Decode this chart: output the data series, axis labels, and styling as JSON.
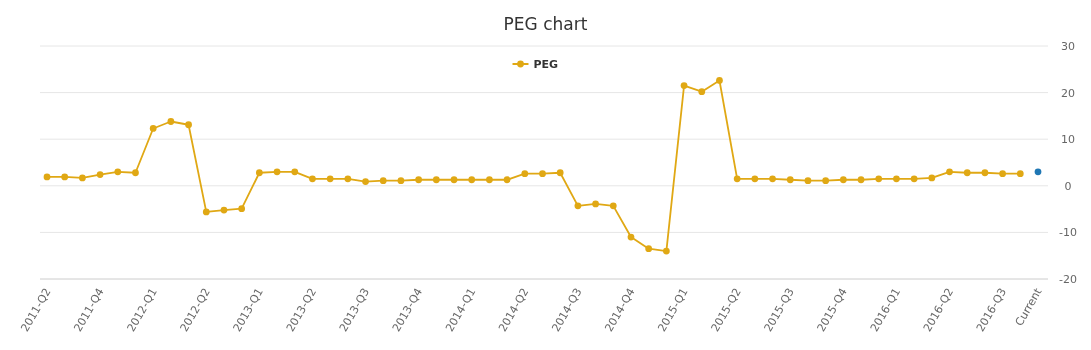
{
  "chart_data": {
    "type": "line",
    "title": "PEG chart",
    "categories": [
      "2011-Q2",
      null,
      null,
      "2011-Q4",
      null,
      null,
      "2012-Q1",
      null,
      null,
      "2012-Q2",
      null,
      null,
      "2013-Q1",
      null,
      null,
      "2013-Q2",
      null,
      null,
      "2013-Q3",
      null,
      null,
      "2013-Q4",
      null,
      null,
      "2014-Q1",
      null,
      null,
      "2014-Q2",
      null,
      null,
      "2014-Q3",
      null,
      null,
      "2014-Q4",
      null,
      null,
      "2015-Q1",
      null,
      null,
      "2015-Q2",
      null,
      null,
      "2015-Q3",
      null,
      null,
      "2015-Q4",
      null,
      null,
      "2016-Q1",
      null,
      null,
      "2016-Q2",
      null,
      null,
      "2016-Q3",
      null,
      "Current"
    ],
    "series": [
      {
        "name": "PEG",
        "color": "#e0a814",
        "values": [
          1.9,
          1.9,
          1.7,
          2.4,
          3.0,
          2.8,
          12.3,
          13.8,
          13.1,
          -5.6,
          -5.2,
          -4.9,
          2.8,
          3.0,
          3.0,
          1.5,
          1.5,
          1.5,
          0.9,
          1.1,
          1.1,
          1.3,
          1.3,
          1.3,
          1.3,
          1.3,
          1.3,
          2.6,
          2.6,
          2.8,
          -4.3,
          -3.9,
          -4.3,
          -11.0,
          -13.5,
          -14.0,
          21.5,
          20.2,
          22.6,
          1.5,
          1.5,
          1.5,
          1.3,
          1.1,
          1.1,
          1.3,
          1.3,
          1.5,
          1.5,
          1.5,
          1.7,
          3.0,
          2.8,
          2.8,
          2.6,
          2.6,
          null
        ]
      },
      {
        "type": "scatter",
        "color": "#1f77b4",
        "values": [
          null,
          null,
          null,
          null,
          null,
          null,
          null,
          null,
          null,
          null,
          null,
          null,
          null,
          null,
          null,
          null,
          null,
          null,
          null,
          null,
          null,
          null,
          null,
          null,
          null,
          null,
          null,
          null,
          null,
          null,
          null,
          null,
          null,
          null,
          null,
          null,
          null,
          null,
          null,
          null,
          null,
          null,
          null,
          null,
          null,
          null,
          null,
          null,
          null,
          null,
          null,
          null,
          null,
          null,
          null,
          null,
          3.0
        ]
      }
    ],
    "ylim": [
      -20,
      30
    ],
    "yticks": [
      -20,
      -10,
      0,
      10,
      20,
      30
    ],
    "grid": "y",
    "legend": "top",
    "marker": "circle"
  }
}
